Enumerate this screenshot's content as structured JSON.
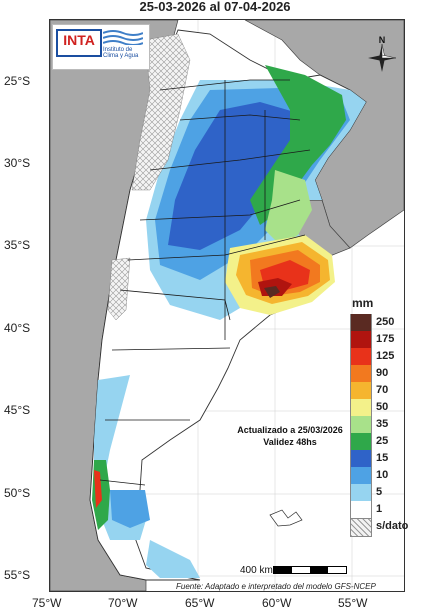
{
  "title": "25-03-2026 al 07-04-2026",
  "logo": {
    "text": "INTA",
    "subtitle": "Instituto de Clima y Agua"
  },
  "compass_label": "N",
  "latitudes": [
    "25°S",
    "30°S",
    "35°S",
    "40°S",
    "45°S",
    "50°S",
    "55°S"
  ],
  "longitudes": [
    "75°W",
    "70°W",
    "65°W",
    "60°W",
    "55°W"
  ],
  "legend": {
    "unit": "mm",
    "items": [
      {
        "label": "250",
        "color": "#5a2a22"
      },
      {
        "label": "175",
        "color": "#b0140f"
      },
      {
        "label": "125",
        "color": "#e8321a"
      },
      {
        "label": "90",
        "color": "#f2791f"
      },
      {
        "label": "70",
        "color": "#f5b52f"
      },
      {
        "label": "50",
        "color": "#f3f18a"
      },
      {
        "label": "35",
        "color": "#a8e18a"
      },
      {
        "label": "25",
        "color": "#2fa84a"
      },
      {
        "label": "15",
        "color": "#2f63c8"
      },
      {
        "label": "10",
        "color": "#4ea2e4"
      },
      {
        "label": "5",
        "color": "#96d4f0"
      },
      {
        "label": "1",
        "color": "#ffffff"
      },
      {
        "label": "s/dato",
        "color": "#dddddd"
      }
    ]
  },
  "updated_line1": "Actualizado a 25/03/2026",
  "updated_line2": "Validez 48hs",
  "scale_label": "400 km",
  "source": "Fuente: Adaptado e interpretado del modelo GFS-NCEP"
}
